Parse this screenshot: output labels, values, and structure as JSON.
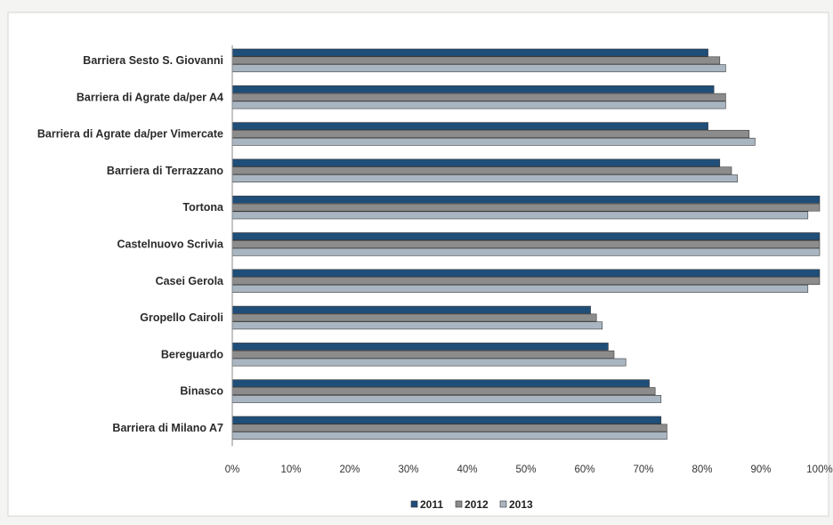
{
  "chart_data": {
    "type": "bar",
    "orientation": "horizontal",
    "categories": [
      "Barriera Sesto S. Giovanni",
      "Barriera di Agrate da/per A4",
      "Barriera di Agrate da/per Vimercate",
      "Barriera di Terrazzano",
      "Tortona",
      "Castelnuovo Scrivia",
      "Casei Gerola",
      "Gropello Cairoli",
      "Bereguardo",
      "Binasco",
      "Barriera di Milano A7"
    ],
    "series": [
      {
        "name": "2011",
        "color": "#1f4e79",
        "values": [
          81,
          82,
          81,
          83,
          100,
          100,
          100,
          61,
          64,
          71,
          73
        ]
      },
      {
        "name": "2012",
        "color": "#8c8c8c",
        "values": [
          83,
          84,
          88,
          85,
          100,
          100,
          100,
          62,
          65,
          72,
          74
        ]
      },
      {
        "name": "2013",
        "color": "#a9b6c2",
        "values": [
          84,
          84,
          89,
          86,
          98,
          100,
          98,
          63,
          67,
          73,
          74
        ]
      }
    ],
    "x_ticks": [
      "0%",
      "10%",
      "20%",
      "30%",
      "40%",
      "50%",
      "60%",
      "70%",
      "80%",
      "90%",
      "100%"
    ],
    "xlim": [
      0,
      100
    ],
    "title": "",
    "xlabel": "",
    "ylabel": "",
    "grid": false,
    "legend_position": "bottom"
  }
}
